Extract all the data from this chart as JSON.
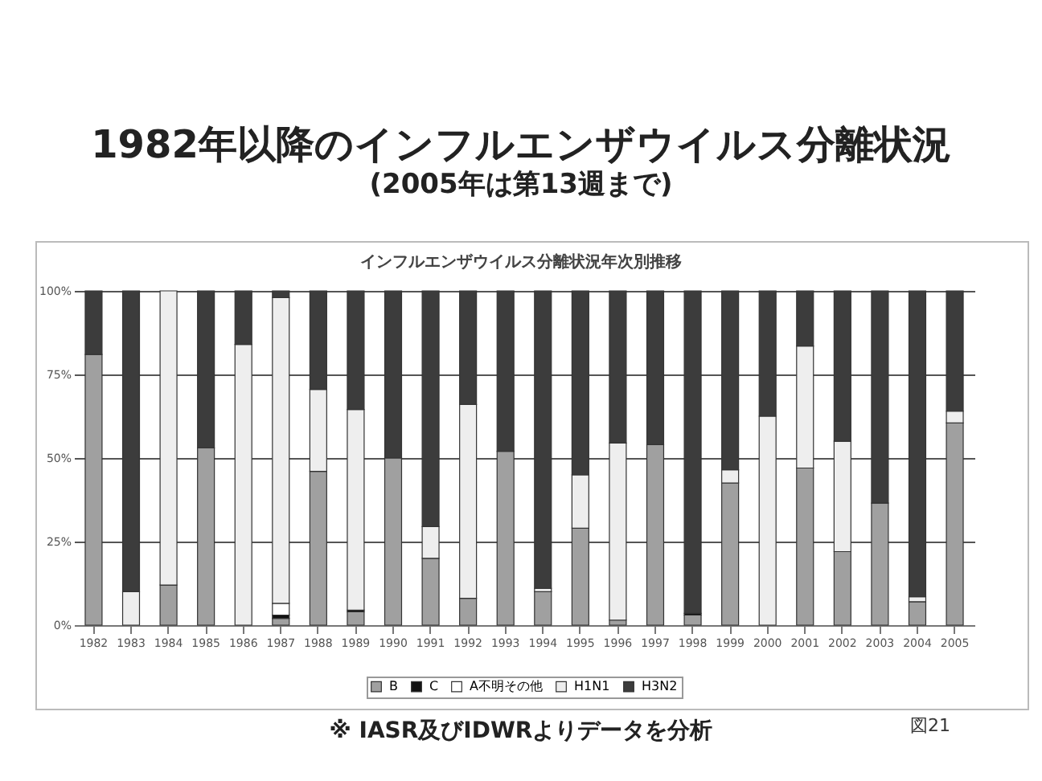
{
  "chart_data": {
    "type": "bar",
    "stacked": true,
    "title": "1982年以降のインフルエンザウイルス分離状況",
    "subtitle": "(2005年は第13週まで)",
    "annotations": [
      "インフルエンザウイルス分離状況年次別推移",
      "※ IASR及びIDWRよりデータを分析",
      "図21"
    ],
    "categories": [
      "1982",
      "1983",
      "1984",
      "1985",
      "1986",
      "1987",
      "1988",
      "1989",
      "1990",
      "1991",
      "1992",
      "1993",
      "1994",
      "1995",
      "1996",
      "1997",
      "1998",
      "1999",
      "2000",
      "2001",
      "2002",
      "2003",
      "2004",
      "2005"
    ],
    "series": [
      {
        "name": "B",
        "color": "#a0a0a0",
        "values": [
          81,
          0,
          12,
          53,
          0,
          2,
          46,
          4,
          50,
          20,
          8,
          52,
          10,
          29,
          1.5,
          54,
          3,
          42.5,
          0,
          47,
          22,
          36.5,
          7,
          60.5
        ]
      },
      {
        "name": "C",
        "color": "#111111",
        "values": [
          0,
          0,
          0,
          0,
          0,
          1,
          0,
          0.5,
          0,
          0,
          0,
          0,
          0,
          0,
          0,
          0,
          0.5,
          0,
          0,
          0,
          0,
          0,
          0,
          0
        ]
      },
      {
        "name": "A不明その他",
        "color": "#ffffff",
        "values": [
          0,
          0,
          0,
          0,
          0,
          3.5,
          0,
          0,
          0,
          0,
          0,
          0,
          0,
          0,
          0,
          0,
          0,
          0,
          0,
          0,
          0,
          0,
          0,
          0
        ]
      },
      {
        "name": "H1N1",
        "color": "#eeeeee",
        "values": [
          0,
          10,
          88,
          0,
          84,
          91.5,
          24.5,
          60,
          0,
          9.5,
          58,
          0,
          1,
          16,
          53,
          0,
          0,
          4,
          62.5,
          36.5,
          33,
          0,
          1.5,
          3.5
        ]
      },
      {
        "name": "H3N2",
        "color": "#3c3c3c",
        "values": [
          19,
          90,
          0,
          47,
          16,
          2,
          29.5,
          35.5,
          50,
          70.5,
          34,
          48,
          89,
          55,
          45.5,
          46,
          96.5,
          53.5,
          37.5,
          16.5,
          45,
          63.5,
          91.5,
          36
        ]
      }
    ],
    "ylim": [
      0,
      100
    ],
    "yticks": [
      {
        "value": 0,
        "label": "0%"
      },
      {
        "value": 25,
        "label": "25%"
      },
      {
        "value": 50,
        "label": "50%"
      },
      {
        "value": 75,
        "label": "75%"
      },
      {
        "value": 100,
        "label": "100%"
      }
    ],
    "grid": "y",
    "legend": "bottom"
  }
}
